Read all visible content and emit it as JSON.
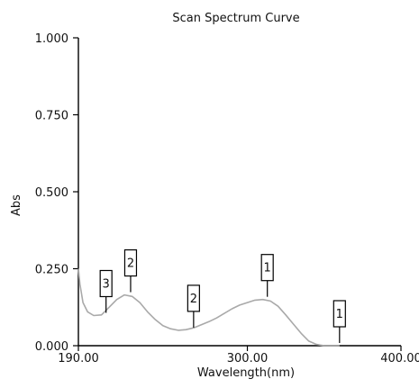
{
  "chart_data": {
    "type": "line",
    "title": "Scan Spectrum Curve",
    "xlabel": "Wavelength(nm)",
    "ylabel": "Abs",
    "xlim": [
      190,
      400
    ],
    "ylim": [
      0,
      1
    ],
    "x_ticks": [
      190,
      300,
      400
    ],
    "x_tick_labels": [
      "190.00",
      "300.00",
      "400.00"
    ],
    "y_ticks": [
      0,
      0.25,
      0.5,
      0.75,
      1.0
    ],
    "y_tick_labels": [
      "0.000",
      "0.250",
      "0.500",
      "0.750",
      "1.000"
    ],
    "grid": false,
    "line_color": "#a9a9a9",
    "series": [
      {
        "x": [
          190,
          191,
          193,
          196,
          200,
          205,
          210,
          215,
          220,
          225,
          230,
          235,
          240,
          245,
          250,
          255,
          260,
          265,
          270,
          275,
          280,
          285,
          290,
          295,
          300,
          305,
          310,
          315,
          320,
          325,
          330,
          335,
          340,
          345,
          350,
          355,
          360
        ],
        "values": [
          0.25,
          0.2,
          0.14,
          0.11,
          0.098,
          0.1,
          0.125,
          0.15,
          0.165,
          0.16,
          0.14,
          0.11,
          0.085,
          0.065,
          0.055,
          0.05,
          0.052,
          0.058,
          0.068,
          0.078,
          0.09,
          0.105,
          0.12,
          0.132,
          0.14,
          0.148,
          0.15,
          0.145,
          0.128,
          0.1,
          0.07,
          0.04,
          0.015,
          0.004,
          0.0,
          0.0,
          0.0
        ]
      }
    ],
    "annotations": [
      {
        "label": "3",
        "x": 208,
        "y": 0.098
      },
      {
        "label": "2",
        "x": 224,
        "y": 0.165
      },
      {
        "label": "2",
        "x": 265,
        "y": 0.05
      },
      {
        "label": "1",
        "x": 313,
        "y": 0.15
      },
      {
        "label": "1",
        "x": 360,
        "y": 0.0
      }
    ]
  }
}
